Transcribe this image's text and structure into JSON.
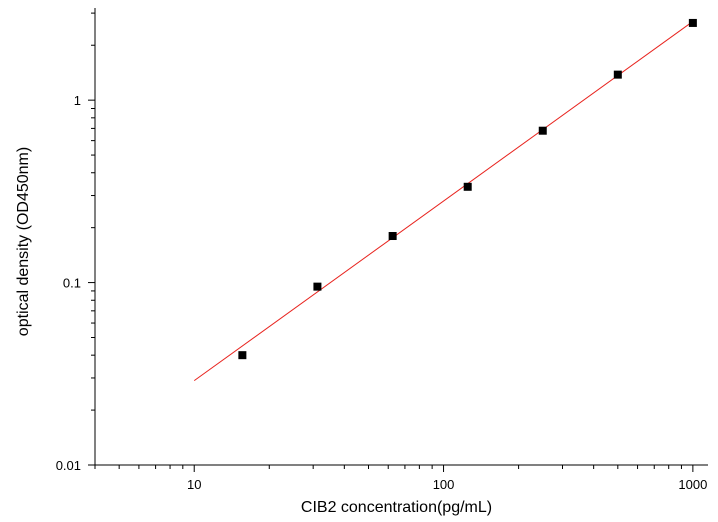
{
  "chart_data": {
    "type": "scatter",
    "title": "",
    "xlabel": "CIB2  concentration(pg/mL)",
    "ylabel": "optical density (OD450nm)",
    "x_scale": "log",
    "y_scale": "log",
    "xlim": [
      4,
      1150
    ],
    "ylim": [
      0.01,
      3.2
    ],
    "x_ticks": [
      10,
      100,
      1000
    ],
    "x_tick_labels": [
      "10",
      "100",
      "1000"
    ],
    "y_ticks": [
      0.01,
      0.1,
      1
    ],
    "y_tick_labels": [
      "0.01",
      "0.1",
      "1"
    ],
    "grid": false,
    "legend": "none",
    "series": [
      {
        "type": "scatter",
        "x": [
          15.6,
          31.2,
          62.5,
          125,
          250,
          500,
          1000
        ],
        "y": [
          0.04,
          0.095,
          0.18,
          0.335,
          0.68,
          1.38,
          2.65
        ]
      },
      {
        "type": "line",
        "x": [
          10,
          1000
        ],
        "y": [
          0.029,
          2.7
        ]
      }
    ],
    "colors": {
      "points": "#000000",
      "fit_line": "#e8231e",
      "axes": "#000000"
    }
  }
}
